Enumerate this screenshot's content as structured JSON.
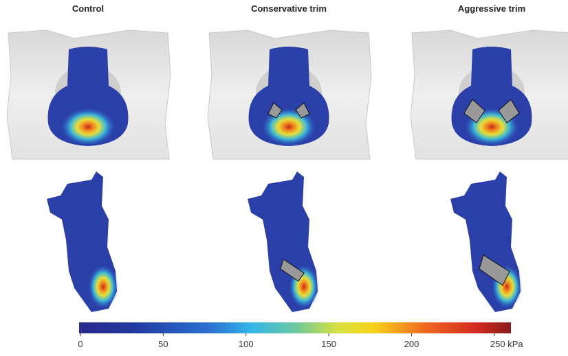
{
  "panels": {
    "titles": [
      "Control",
      "Conservative trim",
      "Aggressive trim"
    ]
  },
  "colorbar": {
    "lim": [
      0,
      260
    ],
    "ticks": [
      0,
      50,
      100,
      150,
      200,
      {
        "value": 250,
        "label": "250 kPa"
      }
    ]
  }
}
